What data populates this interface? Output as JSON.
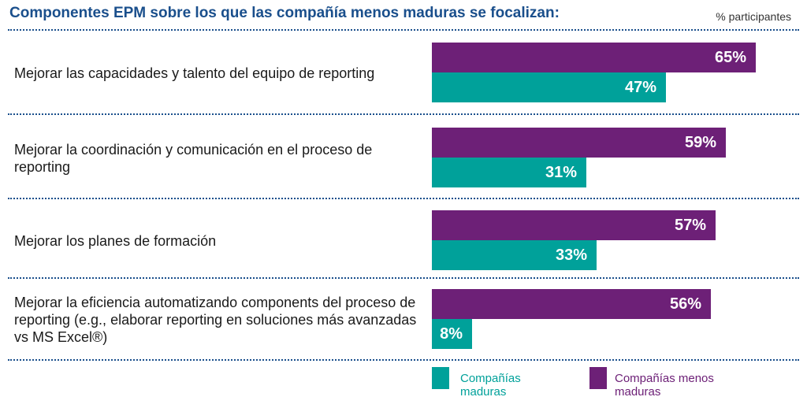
{
  "header": {
    "title": "Componentes EPM sobre los que las compañía menos maduras se focalizan:",
    "unit": "% participantes"
  },
  "colors": {
    "menos_maduras": "#6d2077",
    "maduras": "#00a19a",
    "title": "#1a4f8c"
  },
  "legend": {
    "maduras": "Compañías maduras",
    "menos_maduras": "Compañías menos maduras"
  },
  "chart_data": {
    "type": "bar",
    "orientation": "horizontal",
    "title": "Componentes EPM sobre los que las compañía menos maduras se focalizan:",
    "xlabel": "% participantes",
    "xlim": [
      0,
      70
    ],
    "categories": [
      "Mejorar las capacidades y talento del equipo de reporting",
      "Mejorar la coordinación y comunicación en el proceso de reporting",
      "Mejorar los planes de formación",
      "Mejorar la eficiencia automatizando components del proceso de reporting (e.g., elaborar reporting en soluciones más avanzadas vs MS Excel®)"
    ],
    "series": [
      {
        "name": "Compañías menos maduras",
        "values": [
          65,
          59,
          57,
          56
        ],
        "labels": [
          "65%",
          "59%",
          "57%",
          "56%"
        ]
      },
      {
        "name": "Compañías maduras",
        "values": [
          47,
          31,
          33,
          8
        ],
        "labels": [
          "47%",
          "31%",
          "33%",
          "8%"
        ]
      }
    ],
    "legend_position": "bottom",
    "grid": false
  }
}
